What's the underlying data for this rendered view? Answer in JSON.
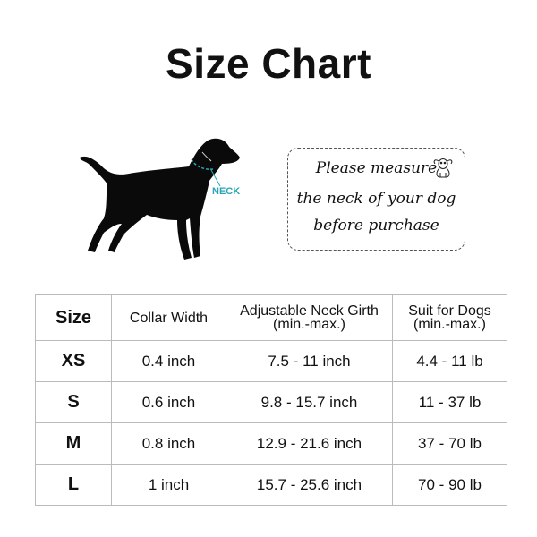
{
  "title": "Size Chart",
  "illustration": {
    "neck_label": "NECK",
    "neck_color": "#2aa6b8"
  },
  "note": {
    "lines": [
      "Please measure",
      "the neck of your dog",
      "before purchase"
    ],
    "icon": "dog-face-icon"
  },
  "table": {
    "headers": [
      {
        "line1": "Size",
        "line2": ""
      },
      {
        "line1": "Collar Width",
        "line2": ""
      },
      {
        "line1": "Adjustable Neck Girth",
        "line2": "(min.-max.)"
      },
      {
        "line1": "Suit for Dogs",
        "line2": "(min.-max.)"
      }
    ],
    "rows": [
      [
        "XS",
        "0.4 inch",
        "7.5 - 11 inch",
        "4.4 - 11 lb"
      ],
      [
        "S",
        "0.6 inch",
        "9.8 - 15.7 inch",
        "11 - 37 lb"
      ],
      [
        "M",
        "0.8 inch",
        "12.9 - 21.6 inch",
        "37 - 70 lb"
      ],
      [
        "L",
        "1 inch",
        "15.7 - 25.6 inch",
        "70 - 90 lb"
      ]
    ]
  }
}
